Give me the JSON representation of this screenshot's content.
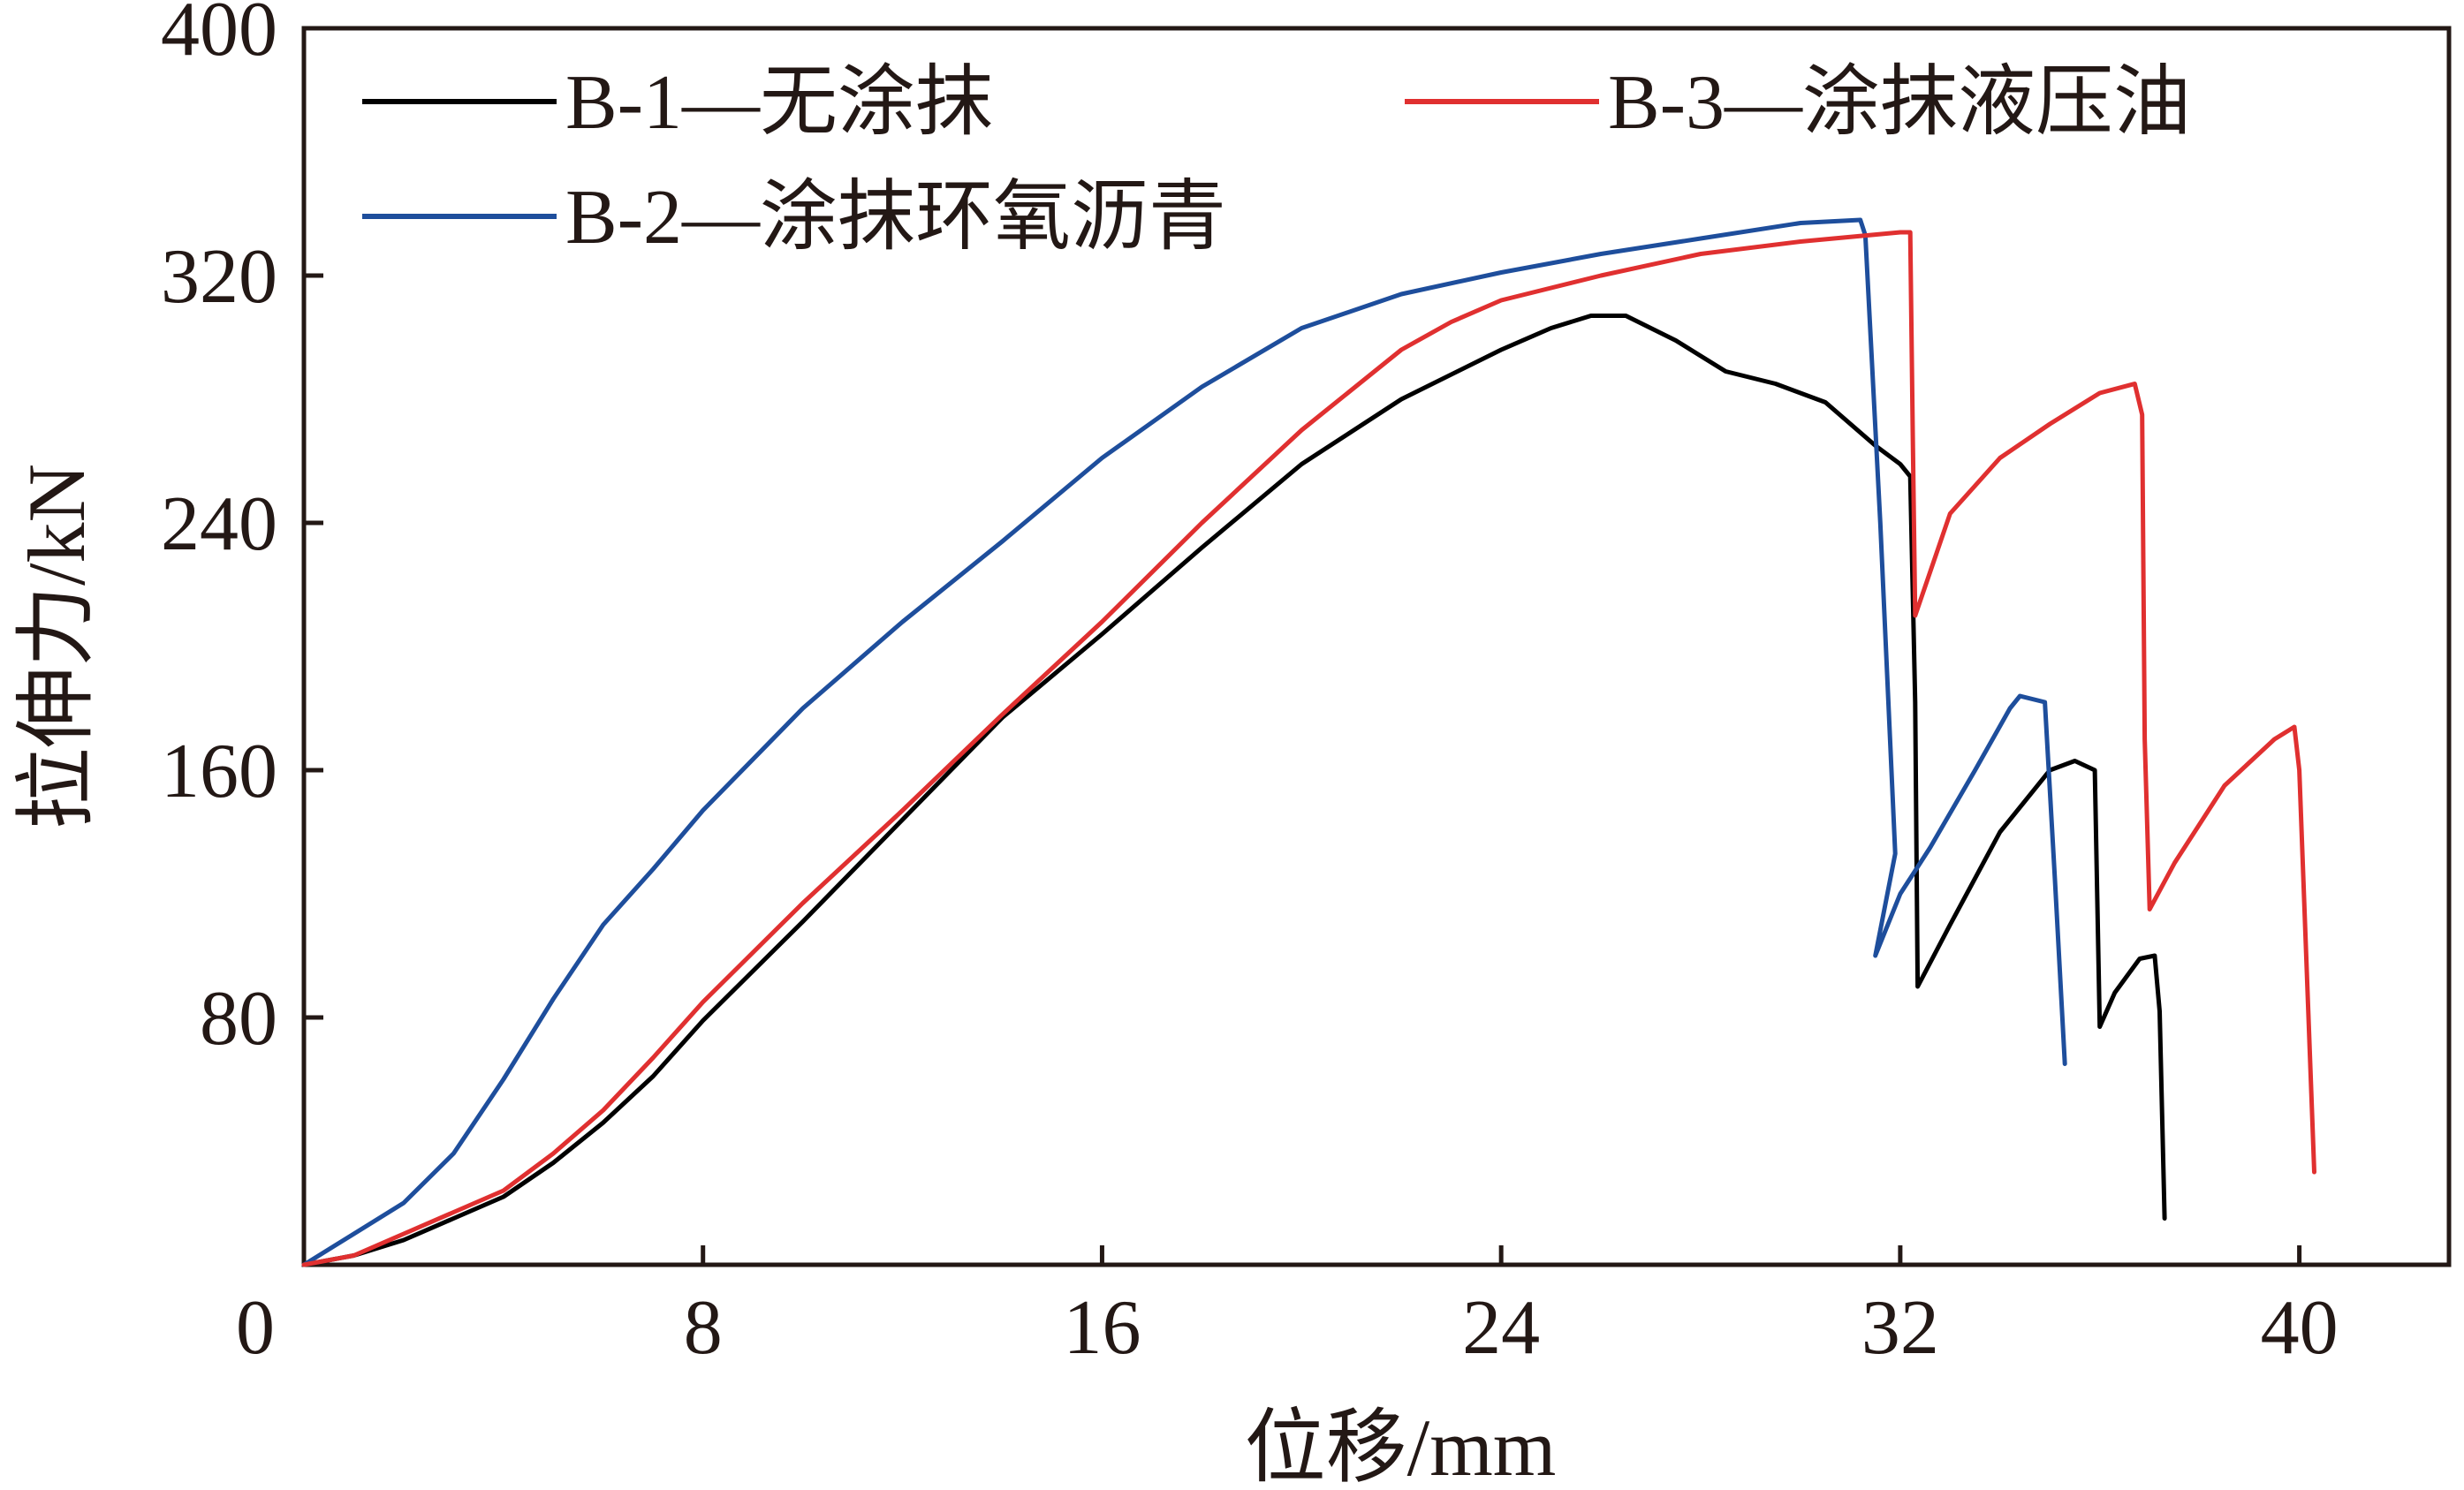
{
  "chart_data": {
    "type": "line",
    "title": "",
    "xlabel": "位移/mm",
    "ylabel": "拉伸力/kN",
    "xlim": [
      0,
      43
    ],
    "ylim": [
      0,
      400
    ],
    "xticks": [
      0,
      8,
      16,
      24,
      32,
      40
    ],
    "yticks": [
      80,
      160,
      240,
      320,
      400
    ],
    "xtick_labels": [
      "0",
      "8",
      "16",
      "24",
      "32",
      "40"
    ],
    "ytick_labels": [
      "80",
      "160",
      "240",
      "320",
      "400"
    ],
    "grid": false,
    "legend_position": "top",
    "series": [
      {
        "name": "B-1—无涂抹",
        "color": "#000000",
        "points": [
          [
            0,
            0
          ],
          [
            1,
            3
          ],
          [
            2,
            8
          ],
          [
            3,
            15
          ],
          [
            4,
            22
          ],
          [
            5,
            33
          ],
          [
            6,
            46
          ],
          [
            7,
            61
          ],
          [
            8,
            79
          ],
          [
            10,
            111
          ],
          [
            12,
            144
          ],
          [
            14,
            177
          ],
          [
            16,
            204
          ],
          [
            18,
            232
          ],
          [
            20,
            259
          ],
          [
            22,
            280
          ],
          [
            24,
            296
          ],
          [
            25,
            303
          ],
          [
            25.8,
            307
          ],
          [
            26.5,
            307
          ],
          [
            27.5,
            299
          ],
          [
            28,
            294
          ],
          [
            28.5,
            289
          ],
          [
            29.5,
            285
          ],
          [
            30.5,
            279
          ],
          [
            31.5,
            265
          ],
          [
            32,
            259
          ],
          [
            32.2,
            255
          ],
          [
            32.3,
            182
          ],
          [
            32.35,
            90
          ],
          [
            33,
            110
          ],
          [
            34,
            140
          ],
          [
            35,
            160
          ],
          [
            35.5,
            163
          ],
          [
            35.9,
            160
          ],
          [
            36,
            77
          ],
          [
            36.3,
            88
          ],
          [
            36.8,
            99
          ],
          [
            37.1,
            100
          ],
          [
            37.2,
            82
          ],
          [
            37.3,
            15
          ]
        ]
      },
      {
        "name": "B-2—涂抹环氧沥青",
        "color": "#1E4E9C",
        "points": [
          [
            0,
            0
          ],
          [
            1,
            10
          ],
          [
            2,
            20
          ],
          [
            3,
            36
          ],
          [
            4,
            60
          ],
          [
            5,
            86
          ],
          [
            6,
            110
          ],
          [
            7,
            128
          ],
          [
            8,
            147
          ],
          [
            10,
            180
          ],
          [
            12,
            208
          ],
          [
            14,
            234
          ],
          [
            16,
            261
          ],
          [
            18,
            284
          ],
          [
            20,
            303
          ],
          [
            22,
            314
          ],
          [
            24,
            321
          ],
          [
            26,
            327
          ],
          [
            28,
            332
          ],
          [
            30,
            337
          ],
          [
            31.2,
            338
          ],
          [
            31.3,
            333
          ],
          [
            31.6,
            240
          ],
          [
            31.9,
            133
          ],
          [
            31.5,
            100
          ],
          [
            32,
            120
          ],
          [
            32.6,
            135
          ],
          [
            33.5,
            160
          ],
          [
            34.2,
            180
          ],
          [
            34.4,
            184
          ],
          [
            34.9,
            182
          ],
          [
            35.1,
            125
          ],
          [
            35.3,
            65
          ]
        ]
      },
      {
        "name": "B-3—涂抹液压油",
        "color": "#E03030",
        "points": [
          [
            0,
            0
          ],
          [
            1,
            3
          ],
          [
            2,
            10
          ],
          [
            3,
            17
          ],
          [
            4,
            24
          ],
          [
            5,
            36
          ],
          [
            6,
            50
          ],
          [
            7,
            67
          ],
          [
            8,
            85
          ],
          [
            10,
            117
          ],
          [
            12,
            147
          ],
          [
            14,
            178
          ],
          [
            16,
            208
          ],
          [
            18,
            240
          ],
          [
            20,
            270
          ],
          [
            22,
            296
          ],
          [
            23,
            305
          ],
          [
            24,
            312
          ],
          [
            26,
            320
          ],
          [
            28,
            327
          ],
          [
            30,
            331
          ],
          [
            32,
            334
          ],
          [
            32.2,
            334
          ],
          [
            32.25,
            270
          ],
          [
            32.3,
            210
          ],
          [
            33,
            243
          ],
          [
            34,
            261
          ],
          [
            35,
            272
          ],
          [
            36,
            282
          ],
          [
            36.7,
            285
          ],
          [
            36.85,
            275
          ],
          [
            36.9,
            170
          ],
          [
            37,
            115
          ],
          [
            37.5,
            130
          ],
          [
            38.5,
            155
          ],
          [
            39.5,
            170
          ],
          [
            39.9,
            174
          ],
          [
            40,
            160
          ],
          [
            40.3,
            30
          ]
        ]
      }
    ]
  }
}
